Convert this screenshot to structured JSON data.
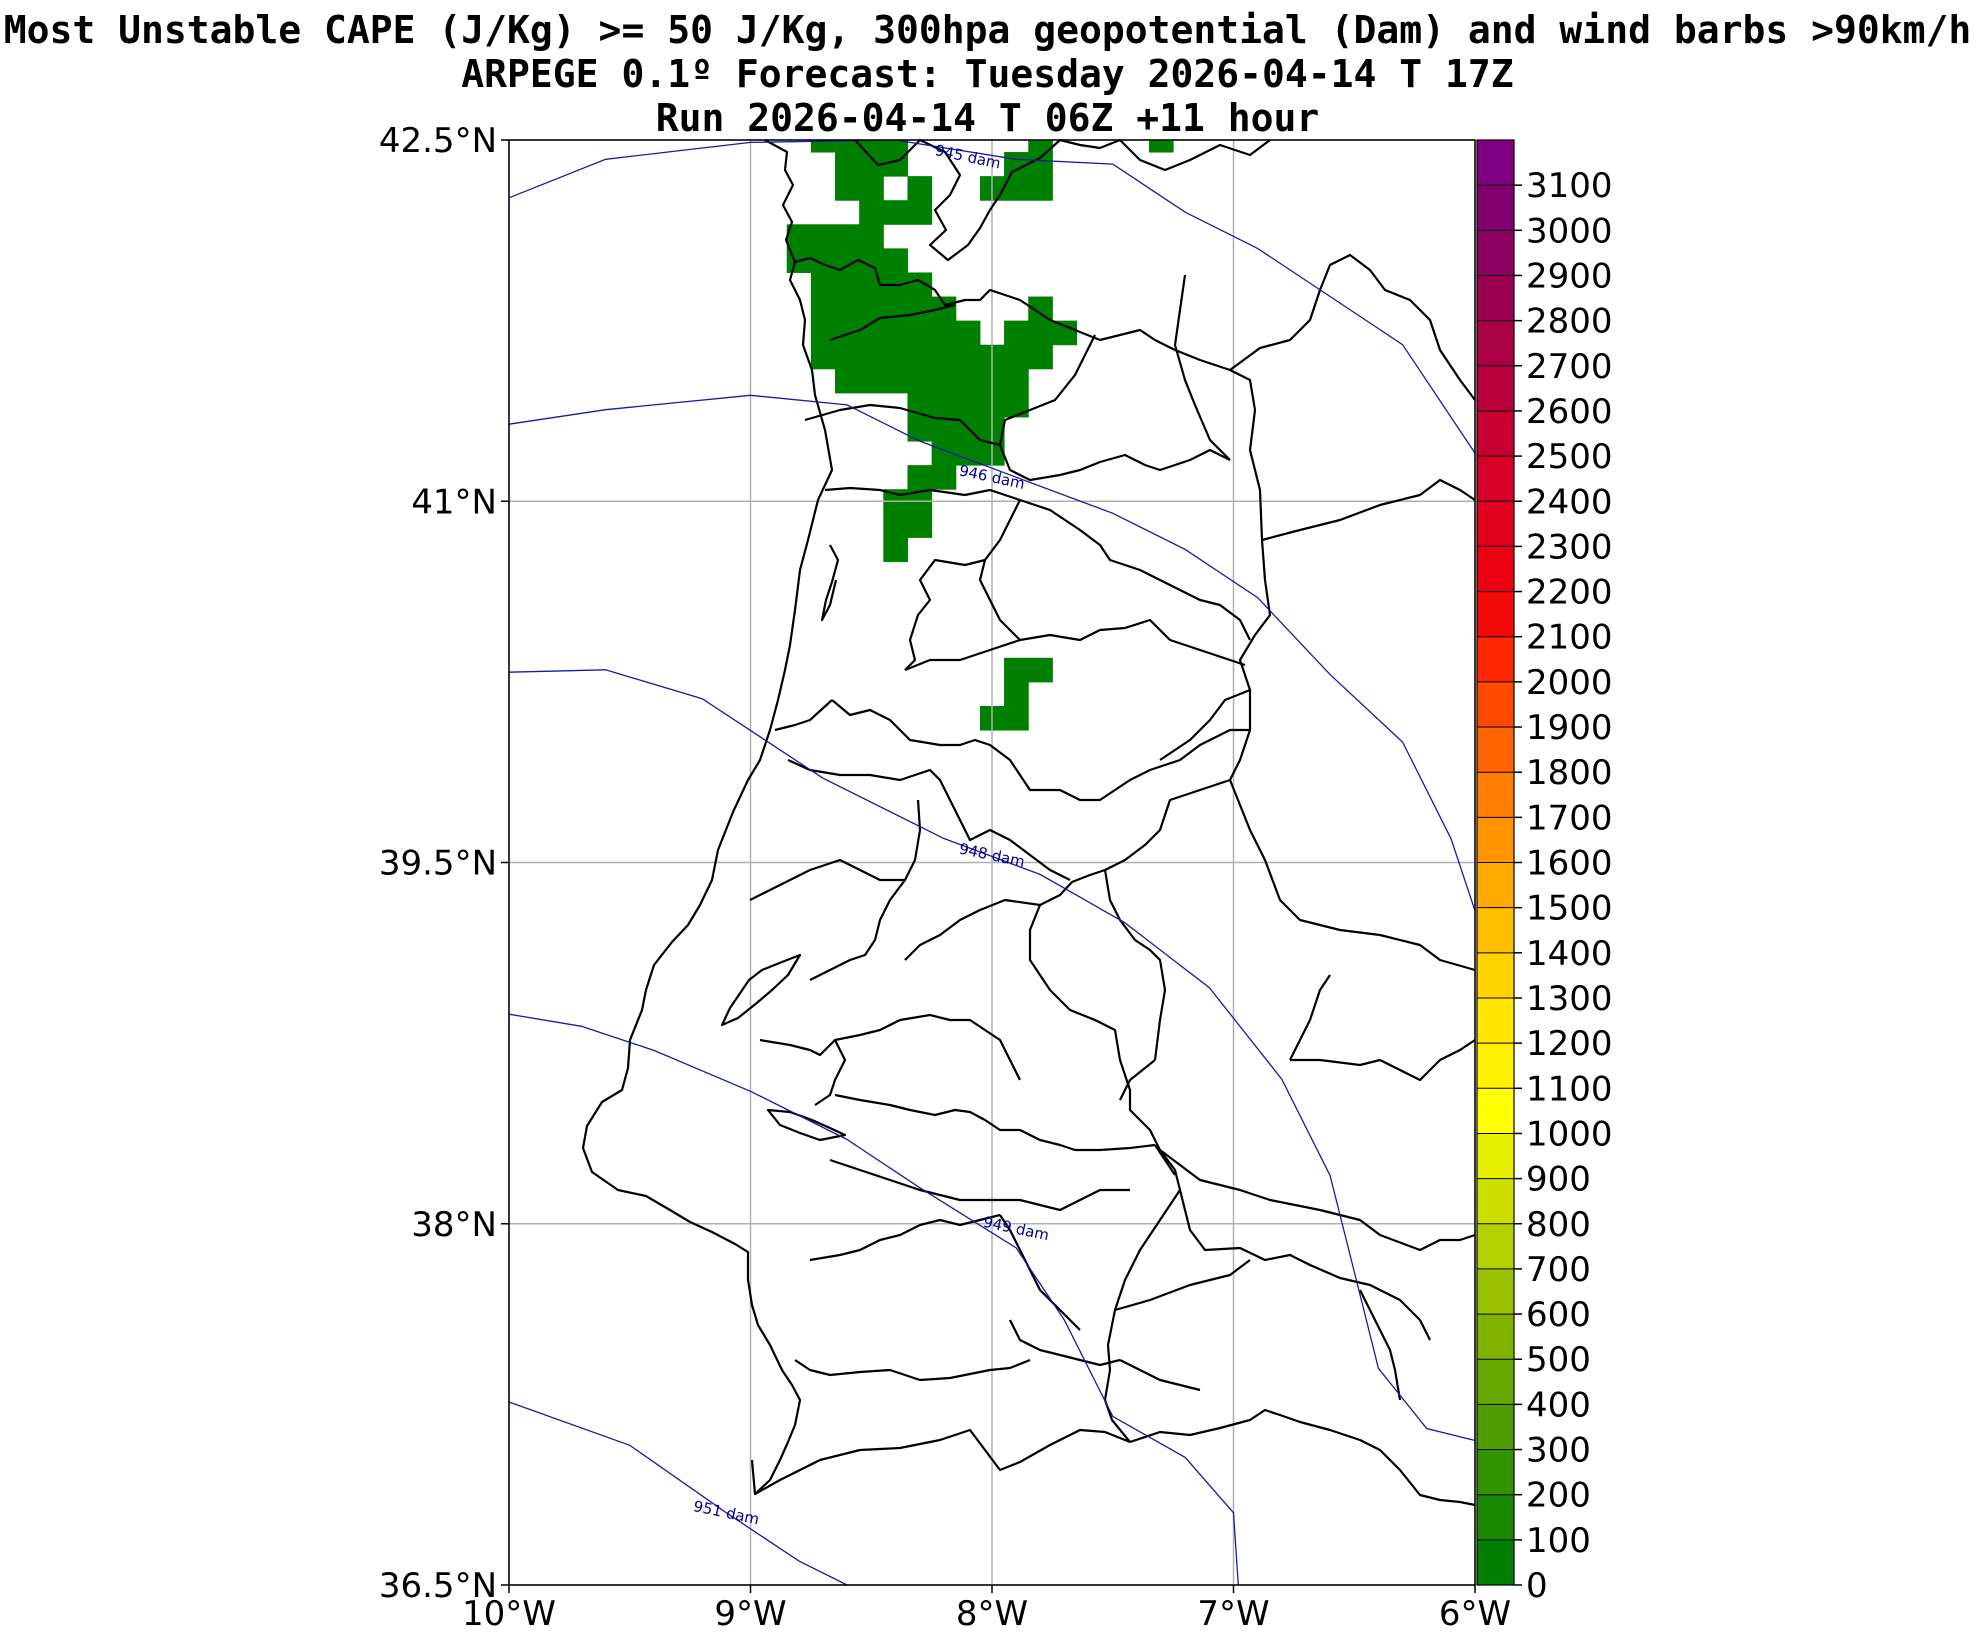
{
  "title_lines": [
    "Most Unstable CAPE (J/Kg) >= 50 J/Kg, 300hpa geopotential (Dam) and wind barbs >90km/h",
    "ARPEGE 0.1º Forecast: Tuesday 2026-04-14 T 17Z",
    "Run 2026-04-14 T 06Z +11 hour"
  ],
  "map": {
    "lat_range": [
      36.5,
      42.5
    ],
    "lon_range": [
      -10,
      -6
    ],
    "lat_ticks": [
      {
        "value": 42.5,
        "label": "42.5°N"
      },
      {
        "value": 41.0,
        "label": "41°N"
      },
      {
        "value": 39.5,
        "label": "39.5°N"
      },
      {
        "value": 38.0,
        "label": "38°N"
      },
      {
        "value": 36.5,
        "label": "36.5°N"
      }
    ],
    "lon_ticks": [
      {
        "value": -10,
        "label": "10°W"
      },
      {
        "value": -9,
        "label": "9°W"
      },
      {
        "value": -8,
        "label": "8°W"
      },
      {
        "value": -7,
        "label": "7°W"
      },
      {
        "value": -6,
        "label": "6°W"
      }
    ],
    "grid": true,
    "contours": [
      {
        "label": "945 dam",
        "label_at": [
          -8.1,
          42.43
        ],
        "points": [
          [
            -10.0,
            42.26
          ],
          [
            -9.6,
            42.42
          ],
          [
            -9.0,
            42.49
          ],
          [
            -8.4,
            42.5
          ],
          [
            -7.9,
            42.42
          ],
          [
            -7.5,
            42.4
          ],
          [
            -7.2,
            42.2
          ],
          [
            -6.9,
            42.05
          ],
          [
            -6.6,
            41.85
          ],
          [
            -6.3,
            41.65
          ],
          [
            -6.0,
            41.2
          ]
        ]
      },
      {
        "label": "946 dam",
        "label_at": [
          -8.0,
          41.1
        ],
        "points": [
          [
            -10.0,
            41.32
          ],
          [
            -9.6,
            41.38
          ],
          [
            -9.0,
            41.44
          ],
          [
            -8.6,
            41.4
          ],
          [
            -8.3,
            41.25
          ],
          [
            -7.9,
            41.1
          ],
          [
            -7.5,
            40.95
          ],
          [
            -7.2,
            40.8
          ],
          [
            -6.9,
            40.6
          ],
          [
            -6.6,
            40.28
          ],
          [
            -6.3,
            40.0
          ],
          [
            -6.1,
            39.6
          ],
          [
            -6.0,
            39.3
          ]
        ]
      },
      {
        "label": "948 dam",
        "label_at": [
          -8.0,
          39.53
        ],
        "points": [
          [
            -10.0,
            40.29
          ],
          [
            -9.6,
            40.3
          ],
          [
            -9.2,
            40.18
          ],
          [
            -8.7,
            39.85
          ],
          [
            -8.2,
            39.6
          ],
          [
            -7.8,
            39.45
          ],
          [
            -7.45,
            39.25
          ],
          [
            -7.1,
            38.98
          ],
          [
            -6.8,
            38.6
          ],
          [
            -6.6,
            38.2
          ],
          [
            -6.5,
            37.8
          ],
          [
            -6.4,
            37.4
          ],
          [
            -6.2,
            37.15
          ],
          [
            -6.0,
            37.1
          ]
        ]
      },
      {
        "label": "949 dam",
        "label_at": [
          -7.9,
          37.98
        ],
        "points": [
          [
            -10.0,
            38.87
          ],
          [
            -9.7,
            38.82
          ],
          [
            -9.4,
            38.72
          ],
          [
            -9.0,
            38.55
          ],
          [
            -8.6,
            38.35
          ],
          [
            -8.3,
            38.15
          ],
          [
            -7.9,
            37.9
          ],
          [
            -7.7,
            37.6
          ],
          [
            -7.5,
            37.2
          ],
          [
            -7.2,
            37.03
          ],
          [
            -7.0,
            36.8
          ],
          [
            -6.98,
            36.5
          ]
        ]
      },
      {
        "label": "951 dam",
        "label_at": [
          -9.1,
          36.8
        ],
        "points": [
          [
            -10.0,
            37.26
          ],
          [
            -9.5,
            37.08
          ],
          [
            -9.1,
            36.8
          ],
          [
            -8.8,
            36.6
          ],
          [
            -8.6,
            36.5
          ]
        ]
      }
    ],
    "cape_cells": [
      [
        -8.7,
        42.5
      ],
      [
        -8.6,
        42.5
      ],
      [
        -8.5,
        42.5
      ],
      [
        -8.4,
        42.5
      ],
      [
        -8.6,
        42.4
      ],
      [
        -8.5,
        42.4
      ],
      [
        -8.4,
        42.4
      ],
      [
        -8.6,
        42.3
      ],
      [
        -8.5,
        42.3
      ],
      [
        -8.3,
        42.3
      ],
      [
        -8.5,
        42.2
      ],
      [
        -8.4,
        42.2
      ],
      [
        -8.3,
        42.2
      ],
      [
        -7.8,
        42.5
      ],
      [
        -7.9,
        42.4
      ],
      [
        -7.8,
        42.4
      ],
      [
        -8.0,
        42.3
      ],
      [
        -7.9,
        42.3
      ],
      [
        -7.8,
        42.3
      ],
      [
        -7.3,
        42.5
      ],
      [
        -8.8,
        42.1
      ],
      [
        -8.7,
        42.1
      ],
      [
        -8.6,
        42.1
      ],
      [
        -8.5,
        42.1
      ],
      [
        -8.8,
        42.0
      ],
      [
        -8.7,
        42.0
      ],
      [
        -8.6,
        42.0
      ],
      [
        -8.5,
        42.0
      ],
      [
        -8.4,
        42.0
      ],
      [
        -8.7,
        41.9
      ],
      [
        -8.6,
        41.9
      ],
      [
        -8.5,
        41.9
      ],
      [
        -8.4,
        41.9
      ],
      [
        -8.3,
        41.9
      ],
      [
        -8.7,
        41.8
      ],
      [
        -8.6,
        41.8
      ],
      [
        -8.5,
        41.8
      ],
      [
        -8.4,
        41.8
      ],
      [
        -8.3,
        41.8
      ],
      [
        -8.2,
        41.8
      ],
      [
        -8.7,
        41.7
      ],
      [
        -8.6,
        41.7
      ],
      [
        -8.5,
        41.7
      ],
      [
        -8.4,
        41.7
      ],
      [
        -8.3,
        41.7
      ],
      [
        -8.2,
        41.7
      ],
      [
        -8.1,
        41.7
      ],
      [
        -7.8,
        41.8
      ],
      [
        -7.9,
        41.7
      ],
      [
        -7.8,
        41.7
      ],
      [
        -7.7,
        41.7
      ],
      [
        -8.7,
        41.6
      ],
      [
        -8.6,
        41.6
      ],
      [
        -8.5,
        41.6
      ],
      [
        -8.4,
        41.6
      ],
      [
        -8.3,
        41.6
      ],
      [
        -8.2,
        41.6
      ],
      [
        -8.1,
        41.6
      ],
      [
        -8.0,
        41.6
      ],
      [
        -7.9,
        41.6
      ],
      [
        -7.8,
        41.6
      ],
      [
        -8.6,
        41.5
      ],
      [
        -8.5,
        41.5
      ],
      [
        -8.4,
        41.5
      ],
      [
        -8.3,
        41.5
      ],
      [
        -8.2,
        41.5
      ],
      [
        -8.1,
        41.5
      ],
      [
        -8.0,
        41.5
      ],
      [
        -7.9,
        41.5
      ],
      [
        -8.3,
        41.4
      ],
      [
        -8.2,
        41.4
      ],
      [
        -8.1,
        41.4
      ],
      [
        -8.0,
        41.4
      ],
      [
        -7.9,
        41.4
      ],
      [
        -8.3,
        41.3
      ],
      [
        -8.2,
        41.3
      ],
      [
        -8.1,
        41.3
      ],
      [
        -8.0,
        41.3
      ],
      [
        -8.2,
        41.2
      ],
      [
        -8.1,
        41.2
      ],
      [
        -8.0,
        41.2
      ],
      [
        -8.3,
        41.1
      ],
      [
        -8.2,
        41.1
      ],
      [
        -8.4,
        41.0
      ],
      [
        -8.3,
        41.0
      ],
      [
        -8.4,
        40.9
      ],
      [
        -8.3,
        40.9
      ],
      [
        -8.4,
        40.8
      ],
      [
        -7.9,
        40.3
      ],
      [
        -7.8,
        40.3
      ],
      [
        -7.9,
        40.2
      ],
      [
        -8.0,
        40.1
      ],
      [
        -7.9,
        40.1
      ]
    ],
    "cell_size_deg": 0.1
  },
  "colorbar": {
    "min": 0,
    "max": 3200,
    "ticks": [
      0,
      100,
      200,
      300,
      400,
      500,
      600,
      700,
      800,
      900,
      1000,
      1100,
      1200,
      1300,
      1400,
      1500,
      1600,
      1700,
      1800,
      1900,
      2000,
      2100,
      2200,
      2300,
      2400,
      2500,
      2600,
      2700,
      2800,
      2900,
      3000,
      3100
    ],
    "colors": [
      "#008000",
      "#1a8700",
      "#339200",
      "#4d9d00",
      "#66a800",
      "#80b300",
      "#99c100",
      "#b3d000",
      "#cce000",
      "#e6f000",
      "#ffff00",
      "#fff200",
      "#ffe500",
      "#ffd200",
      "#ffbf00",
      "#ffaa00",
      "#ff9400",
      "#ff7d00",
      "#ff6400",
      "#ff4b00",
      "#ff2800",
      "#f50a0a",
      "#eb0014",
      "#e1001e",
      "#d70028",
      "#c80032",
      "#b9003c",
      "#aa0046",
      "#9b0050",
      "#8c005f",
      "#82006e",
      "#7f0080"
    ]
  }
}
